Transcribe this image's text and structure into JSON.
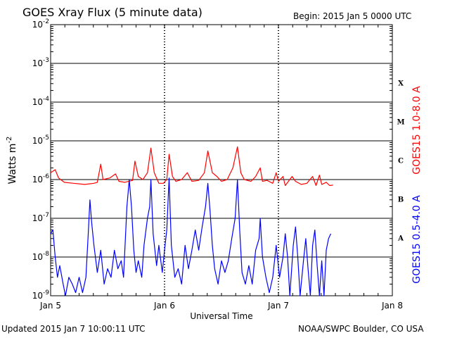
{
  "header": {
    "title": "GOES Xray Flux (5 minute data)",
    "begin": "Begin:  2015 Jan 5 0000 UTC"
  },
  "footer": {
    "updated": "Updated 2015 Jan  7 10:00:11 UTC",
    "credit": "NOAA/SWPC Boulder, CO USA"
  },
  "colors": {
    "long_channel": "#ff0000",
    "short_channel": "#0000ff",
    "grid": "#000000"
  },
  "chart_data": {
    "type": "line",
    "title": "GOES Xray Flux (5 minute data)",
    "xlabel": "Universal Time",
    "ylabel": "Watts m",
    "ylabel_sup": "-2",
    "yscale": "log",
    "ylim": [
      1e-09,
      0.01
    ],
    "xlim": [
      0,
      3
    ],
    "x_units": "days since 2015 Jan 5 0000 UTC",
    "x_ticks": [
      {
        "x": 0,
        "label": "Jan 5"
      },
      {
        "x": 1,
        "label": "Jan 6"
      },
      {
        "x": 2,
        "label": "Jan 7"
      },
      {
        "x": 3,
        "label": "Jan 8"
      }
    ],
    "y_ticks": [
      {
        "mantissa": "10",
        "exp": "-9"
      },
      {
        "mantissa": "10",
        "exp": "-8"
      },
      {
        "mantissa": "10",
        "exp": "-7"
      },
      {
        "mantissa": "10",
        "exp": "-6"
      },
      {
        "mantissa": "10",
        "exp": "-5"
      },
      {
        "mantissa": "10",
        "exp": "-4"
      },
      {
        "mantissa": "10",
        "exp": "-3"
      },
      {
        "mantissa": "10",
        "exp": "-2"
      }
    ],
    "flare_classes": [
      {
        "label": "A",
        "from": 1e-08,
        "to": 1e-07
      },
      {
        "label": "B",
        "from": 1e-07,
        "to": 1e-06
      },
      {
        "label": "C",
        "from": 1e-06,
        "to": 1e-05
      },
      {
        "label": "M",
        "from": 1e-05,
        "to": 0.0001
      },
      {
        "label": "X",
        "from": 0.0001,
        "to": 0.001
      }
    ],
    "series": [
      {
        "name": "GOES15 1.0-8.0 A",
        "color": "#ff0000",
        "points": [
          [
            0.0,
            1.5e-06
          ],
          [
            0.04,
            1.8e-06
          ],
          [
            0.07,
            1.1e-06
          ],
          [
            0.12,
            8.5e-07
          ],
          [
            0.2,
            8e-07
          ],
          [
            0.3,
            7.5e-07
          ],
          [
            0.38,
            8e-07
          ],
          [
            0.41,
            8.5e-07
          ],
          [
            0.44,
            2.5e-06
          ],
          [
            0.46,
            1e-06
          ],
          [
            0.52,
            1.1e-06
          ],
          [
            0.57,
            1.4e-06
          ],
          [
            0.6,
            9e-07
          ],
          [
            0.65,
            8.5e-07
          ],
          [
            0.72,
            9.5e-07
          ],
          [
            0.74,
            3e-06
          ],
          [
            0.77,
            1.2e-06
          ],
          [
            0.81,
            1e-06
          ],
          [
            0.85,
            1.5e-06
          ],
          [
            0.88,
            6.5e-06
          ],
          [
            0.91,
            1.5e-06
          ],
          [
            0.95,
            8e-07
          ],
          [
            0.99,
            8e-07
          ],
          [
            1.02,
            1e-06
          ],
          [
            1.04,
            4.5e-06
          ],
          [
            1.07,
            1.2e-06
          ],
          [
            1.1,
            9e-07
          ],
          [
            1.15,
            1e-06
          ],
          [
            1.2,
            1.5e-06
          ],
          [
            1.24,
            9e-07
          ],
          [
            1.3,
            9.5e-07
          ],
          [
            1.35,
            1.5e-06
          ],
          [
            1.38,
            5.5e-06
          ],
          [
            1.42,
            1.5e-06
          ],
          [
            1.46,
            1.2e-06
          ],
          [
            1.5,
            9e-07
          ],
          [
            1.55,
            1e-06
          ],
          [
            1.6,
            2e-06
          ],
          [
            1.64,
            7e-06
          ],
          [
            1.67,
            1.5e-06
          ],
          [
            1.7,
            1e-06
          ],
          [
            1.76,
            9e-07
          ],
          [
            1.8,
            1.2e-06
          ],
          [
            1.84,
            2e-06
          ],
          [
            1.86,
            9e-07
          ],
          [
            1.9,
            9.5e-07
          ],
          [
            1.95,
            8e-07
          ],
          [
            1.98,
            1.5e-06
          ],
          [
            2.0,
            9e-07
          ],
          [
            2.04,
            1.2e-06
          ],
          [
            2.06,
            7e-07
          ],
          [
            2.12,
            1.2e-06
          ],
          [
            2.15,
            9e-07
          ],
          [
            2.2,
            7.5e-07
          ],
          [
            2.25,
            8e-07
          ],
          [
            2.3,
            1.2e-06
          ],
          [
            2.33,
            7e-07
          ],
          [
            2.36,
            1.3e-06
          ],
          [
            2.38,
            7.5e-07
          ],
          [
            2.42,
            8.5e-07
          ],
          [
            2.45,
            7e-07
          ],
          [
            2.48,
            7.2e-07
          ]
        ]
      },
      {
        "name": "GOES15 0.5-4.0 A",
        "color": "#0000ff",
        "points": [
          [
            0.0,
            4e-08
          ],
          [
            0.02,
            5e-08
          ],
          [
            0.04,
            1e-08
          ],
          [
            0.06,
            3e-09
          ],
          [
            0.08,
            6e-09
          ],
          [
            0.11,
            2e-09
          ],
          [
            0.13,
            1e-09
          ],
          [
            0.16,
            3e-09
          ],
          [
            0.19,
            2e-09
          ],
          [
            0.22,
            1.2e-09
          ],
          [
            0.25,
            3e-09
          ],
          [
            0.28,
            1.2e-09
          ],
          [
            0.31,
            3e-09
          ],
          [
            0.33,
            4e-08
          ],
          [
            0.345,
            3e-07
          ],
          [
            0.36,
            8e-08
          ],
          [
            0.38,
            2e-08
          ],
          [
            0.41,
            4e-09
          ],
          [
            0.44,
            1.5e-08
          ],
          [
            0.47,
            2e-09
          ],
          [
            0.5,
            5e-09
          ],
          [
            0.53,
            3e-09
          ],
          [
            0.56,
            1.5e-08
          ],
          [
            0.59,
            5e-09
          ],
          [
            0.62,
            8e-09
          ],
          [
            0.64,
            3e-09
          ],
          [
            0.67,
            2e-07
          ],
          [
            0.69,
            1e-06
          ],
          [
            0.71,
            2e-07
          ],
          [
            0.73,
            1.5e-08
          ],
          [
            0.75,
            4e-09
          ],
          [
            0.77,
            8e-09
          ],
          [
            0.8,
            3e-09
          ],
          [
            0.82,
            2e-08
          ],
          [
            0.85,
            1e-07
          ],
          [
            0.87,
            2e-07
          ],
          [
            0.88,
            1e-06
          ],
          [
            0.9,
            4e-08
          ],
          [
            0.93,
            6e-09
          ],
          [
            0.95,
            2e-08
          ],
          [
            0.98,
            4e-09
          ],
          [
            1.0,
            1.5e-08
          ],
          [
            1.02,
            5e-08
          ],
          [
            1.04,
            1.1e-06
          ],
          [
            1.06,
            2e-08
          ],
          [
            1.09,
            3e-09
          ],
          [
            1.12,
            5e-09
          ],
          [
            1.15,
            2e-09
          ],
          [
            1.18,
            2e-08
          ],
          [
            1.21,
            5e-09
          ],
          [
            1.24,
            1.5e-08
          ],
          [
            1.27,
            5e-08
          ],
          [
            1.3,
            1.5e-08
          ],
          [
            1.33,
            6e-08
          ],
          [
            1.36,
            2e-07
          ],
          [
            1.38,
            8e-07
          ],
          [
            1.4,
            1.5e-07
          ],
          [
            1.42,
            2e-08
          ],
          [
            1.44,
            5e-09
          ],
          [
            1.47,
            2e-09
          ],
          [
            1.5,
            8e-09
          ],
          [
            1.53,
            4e-09
          ],
          [
            1.56,
            8e-09
          ],
          [
            1.59,
            3e-08
          ],
          [
            1.62,
            1e-07
          ],
          [
            1.64,
            1e-06
          ],
          [
            1.66,
            5e-08
          ],
          [
            1.68,
            4e-09
          ],
          [
            1.71,
            2e-09
          ],
          [
            1.74,
            6e-09
          ],
          [
            1.77,
            2e-09
          ],
          [
            1.8,
            1.5e-08
          ],
          [
            1.83,
            3e-08
          ],
          [
            1.84,
            1e-07
          ],
          [
            1.86,
            1e-08
          ],
          [
            1.89,
            3e-09
          ],
          [
            1.92,
            1.2e-09
          ],
          [
            1.95,
            3e-09
          ],
          [
            1.98,
            2e-08
          ],
          [
            2.01,
            3e-09
          ],
          [
            2.04,
            1e-08
          ],
          [
            2.06,
            4e-08
          ],
          [
            2.08,
            1e-08
          ],
          [
            2.1,
            1e-09
          ],
          [
            2.13,
            2e-08
          ],
          [
            2.15,
            6e-08
          ],
          [
            2.17,
            1e-08
          ],
          [
            2.19,
            1e-09
          ],
          [
            2.22,
            8e-09
          ],
          [
            2.24,
            3e-08
          ],
          [
            2.26,
            5e-09
          ],
          [
            2.28,
            1e-09
          ],
          [
            2.3,
            2e-08
          ],
          [
            2.32,
            5e-08
          ],
          [
            2.34,
            6e-09
          ],
          [
            2.36,
            1e-09
          ],
          [
            2.38,
            8e-09
          ],
          [
            2.4,
            1e-09
          ],
          [
            2.42,
            1.5e-08
          ],
          [
            2.44,
            3e-08
          ],
          [
            2.46,
            4e-08
          ]
        ]
      }
    ]
  }
}
